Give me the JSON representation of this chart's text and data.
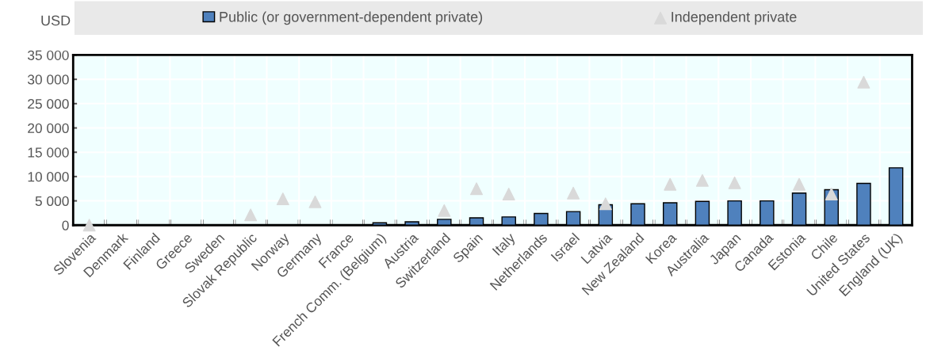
{
  "chart_data": {
    "type": "bar",
    "ylabel": "USD",
    "categories": [
      "Slovenia",
      "Denmark",
      "Finland",
      "Greece",
      "Sweden",
      "Slovak Republic",
      "Norway",
      "Germany",
      "France",
      "French Comm. (Belgium)",
      "Austria",
      "Switzerland",
      "Spain",
      "Italy",
      "Netherlands",
      "Israel",
      "Latvia",
      "New Zealand",
      "Korea",
      "Australia",
      "Japan",
      "Canada",
      "Estonia",
      "Chile",
      "United States",
      "England (UK)"
    ],
    "series": [
      {
        "name": "Public (or government-dependent private)",
        "color": "#4f81bd",
        "values": [
          null,
          null,
          null,
          null,
          null,
          null,
          null,
          null,
          null,
          500,
          700,
          1200,
          1500,
          1700,
          2400,
          2800,
          4200,
          4400,
          4600,
          4900,
          5000,
          5000,
          6600,
          7300,
          8600,
          11800
        ]
      },
      {
        "name": "Independent private",
        "type": "scatter",
        "marker": "triangle",
        "color": "#d9d9d9",
        "values": [
          0,
          null,
          null,
          null,
          null,
          2100,
          5400,
          4800,
          null,
          null,
          null,
          3000,
          7500,
          6400,
          null,
          6600,
          4400,
          null,
          8400,
          9200,
          8700,
          null,
          8400,
          6400,
          29400,
          null
        ]
      }
    ],
    "ylim": [
      0,
      35000
    ],
    "yticks": [
      {
        "value": 0,
        "label": "0"
      },
      {
        "value": 5000,
        "label": "5 000"
      },
      {
        "value": 10000,
        "label": "10 000"
      },
      {
        "value": 15000,
        "label": "15 000"
      },
      {
        "value": 20000,
        "label": "20 000"
      },
      {
        "value": 25000,
        "label": "25 000"
      },
      {
        "value": 30000,
        "label": "30 000"
      },
      {
        "value": 35000,
        "label": "35 000"
      }
    ],
    "grid": true,
    "legend": "top"
  }
}
